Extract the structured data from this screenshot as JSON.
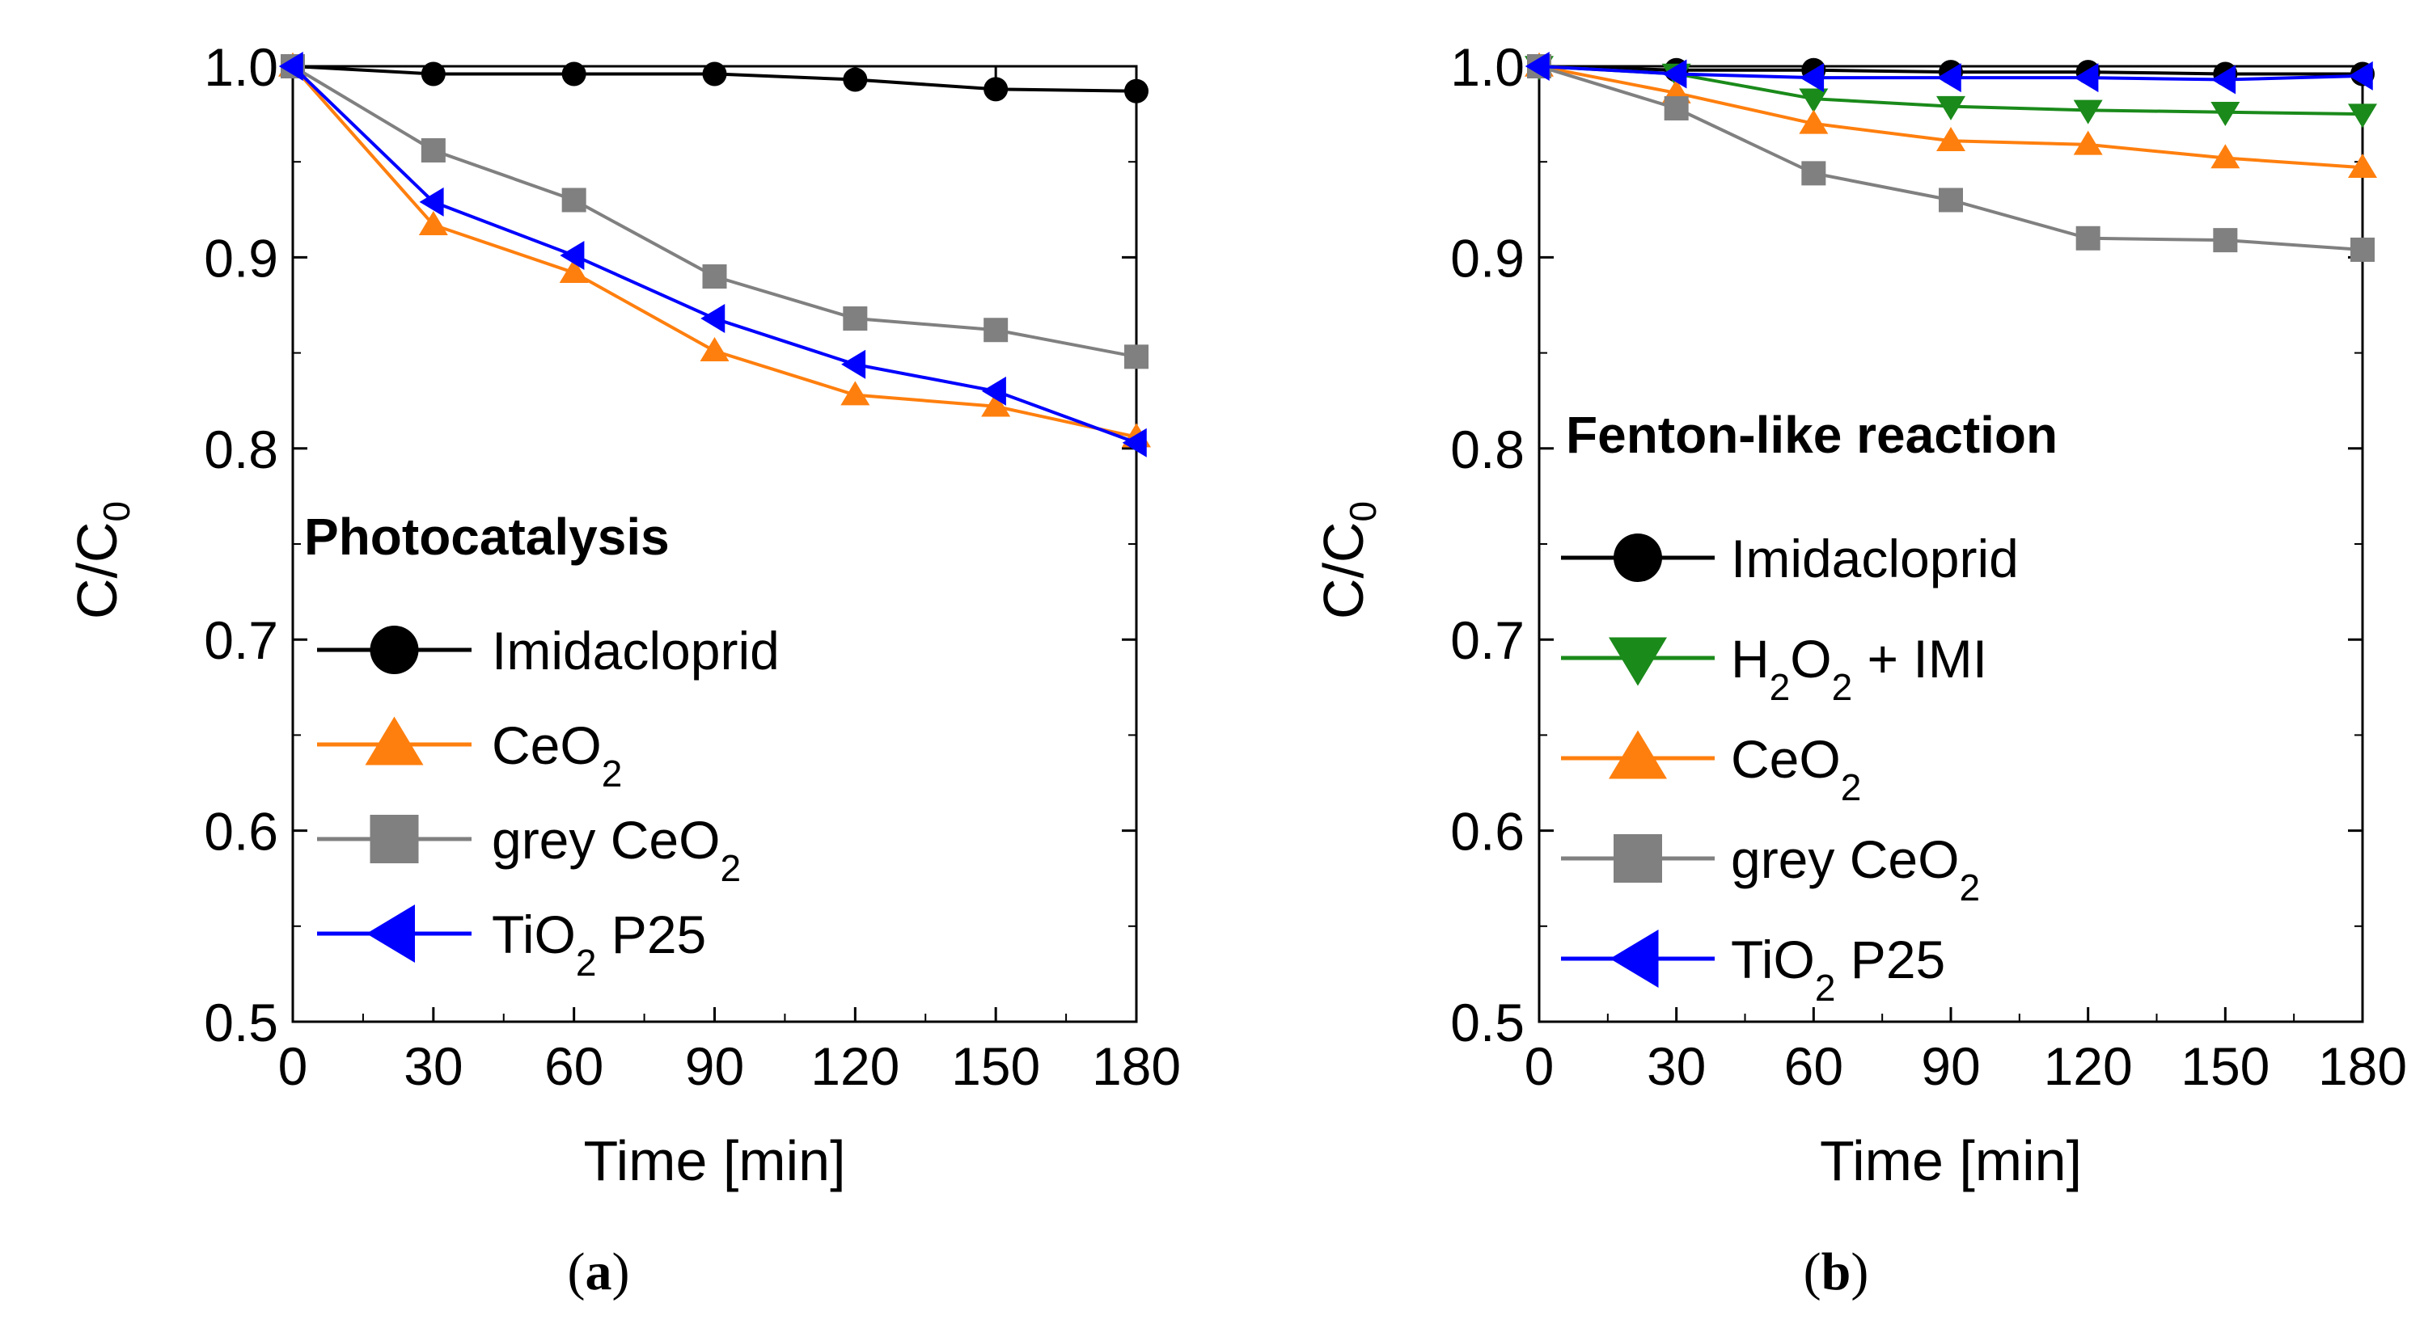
{
  "chart_data": [
    {
      "type": "line",
      "panel": "a",
      "panel_label": {
        "open": "(",
        "letter": "a",
        "close": ")"
      },
      "title": "Photocatalysis",
      "xlabel": "Time [min]",
      "ylabel": {
        "main": "C/C",
        "sub": "0"
      },
      "xlim": [
        0,
        180
      ],
      "ylim": [
        0.5,
        1.0
      ],
      "xticks": [
        0,
        30,
        60,
        90,
        120,
        150,
        180
      ],
      "xtick_labels": [
        "0",
        "30",
        "60",
        "90",
        "120",
        "150",
        "180"
      ],
      "yticks": [
        0.5,
        0.6,
        0.7,
        0.8,
        0.9,
        1.0
      ],
      "ytick_labels": [
        "0.5",
        "0.6",
        "0.7",
        "0.8",
        "0.9",
        "1.0"
      ],
      "grid": false,
      "legend_position": "bottom-left",
      "x": [
        0,
        30,
        60,
        90,
        120,
        150,
        180
      ],
      "series": [
        {
          "name": "Imidacloprid",
          "label_main": "Imidacloprid",
          "label_sub": "",
          "label_rest": "",
          "color": "#000000",
          "marker": "circle",
          "values": [
            1.0,
            0.996,
            0.996,
            0.996,
            0.993,
            0.988,
            0.987
          ]
        },
        {
          "name": "CeO2",
          "label_main": "CeO",
          "label_sub": "2",
          "label_rest": "",
          "color": "#ff7f0e",
          "marker": "triangle-up",
          "values": [
            1.0,
            0.917,
            0.892,
            0.851,
            0.828,
            0.822,
            0.806
          ]
        },
        {
          "name": "grey CeO2",
          "label_main": "grey CeO",
          "label_sub": "2",
          "label_rest": "",
          "color": "#808080",
          "marker": "square",
          "values": [
            1.0,
            0.956,
            0.93,
            0.89,
            0.868,
            0.862,
            0.848
          ]
        },
        {
          "name": "TiO2 P25",
          "label_main": "TiO",
          "label_sub": "2",
          "label_rest": " P25",
          "color": "#0000ff",
          "marker": "triangle-left",
          "values": [
            1.0,
            0.929,
            0.901,
            0.868,
            0.844,
            0.83,
            0.803
          ]
        }
      ]
    },
    {
      "type": "line",
      "panel": "b",
      "panel_label": {
        "open": "(",
        "letter": "b",
        "close": ")"
      },
      "title": "Fenton-like reaction",
      "xlabel": "Time [min]",
      "ylabel": {
        "main": "C/C",
        "sub": "0"
      },
      "xlim": [
        0,
        180
      ],
      "ylim": [
        0.5,
        1.0
      ],
      "xticks": [
        0,
        30,
        60,
        90,
        120,
        150,
        180
      ],
      "xtick_labels": [
        "0",
        "30",
        "60",
        "90",
        "120",
        "150",
        "180"
      ],
      "yticks": [
        0.5,
        0.6,
        0.7,
        0.8,
        0.9,
        1.0
      ],
      "ytick_labels": [
        "0.5",
        "0.6",
        "0.7",
        "0.8",
        "0.9",
        "1.0"
      ],
      "grid": false,
      "legend_position": "bottom-left",
      "x": [
        0,
        30,
        60,
        90,
        120,
        150,
        180
      ],
      "series": [
        {
          "name": "Imidacloprid",
          "label_main": "Imidacloprid",
          "label_sub": "",
          "label_rest": "",
          "color": "#000000",
          "marker": "circle",
          "values": [
            1.0,
            0.998,
            0.998,
            0.997,
            0.997,
            0.996,
            0.996
          ]
        },
        {
          "name": "H2O2 + IMI",
          "label_main": "H",
          "label_sub": "2",
          "label_mid": "O",
          "label_sub2": "2",
          "label_rest": " + IMI",
          "color": "#1a8a1a",
          "marker": "triangle-down",
          "values": [
            1.0,
            0.996,
            0.983,
            0.979,
            0.977,
            0.976,
            0.975
          ]
        },
        {
          "name": "CeO2",
          "label_main": "CeO",
          "label_sub": "2",
          "label_rest": "",
          "color": "#ff7f0e",
          "marker": "triangle-up",
          "values": [
            1.0,
            0.986,
            0.97,
            0.961,
            0.959,
            0.952,
            0.947
          ]
        },
        {
          "name": "grey CeO2",
          "label_main": "grey CeO",
          "label_sub": "2",
          "label_rest": "",
          "color": "#808080",
          "marker": "square",
          "values": [
            1.0,
            0.978,
            0.944,
            0.93,
            0.91,
            0.909,
            0.904
          ]
        },
        {
          "name": "TiO2 P25",
          "label_main": "TiO",
          "label_sub": "2",
          "label_rest": " P25",
          "color": "#0000ff",
          "marker": "triangle-left",
          "values": [
            1.0,
            0.996,
            0.994,
            0.994,
            0.994,
            0.993,
            0.995
          ]
        }
      ]
    }
  ]
}
